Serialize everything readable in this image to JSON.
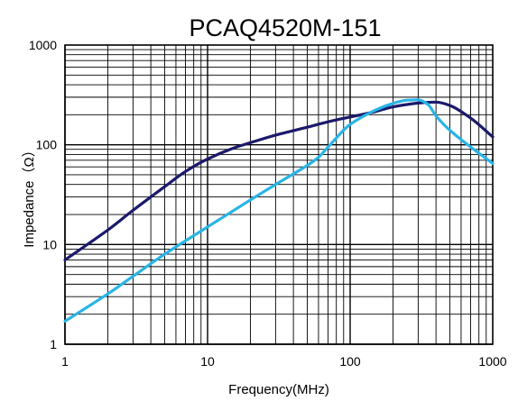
{
  "chart_data": {
    "type": "line",
    "title": "PCAQ4520M-151",
    "xlabel": "Frequency(MHz)",
    "ylabel": "Impedance（Ω）",
    "x_scale": "log",
    "y_scale": "log",
    "xlim": [
      1,
      1000
    ],
    "ylim": [
      1,
      1000
    ],
    "grid": true,
    "x_ticks": [
      {
        "value": 1,
        "label": "1"
      },
      {
        "value": 10,
        "label": "10"
      },
      {
        "value": 100,
        "label": "100"
      },
      {
        "value": 1000,
        "label": "1000"
      }
    ],
    "y_ticks": [
      {
        "value": 1,
        "label": "1"
      },
      {
        "value": 10,
        "label": "10"
      },
      {
        "value": 100,
        "label": "100"
      },
      {
        "value": 1000,
        "label": "1000"
      }
    ],
    "series": [
      {
        "color": "#1b1a6b",
        "points": [
          [
            1,
            7
          ],
          [
            2,
            14
          ],
          [
            3,
            22
          ],
          [
            5,
            38
          ],
          [
            7,
            54
          ],
          [
            10,
            72
          ],
          [
            15,
            92
          ],
          [
            20,
            105
          ],
          [
            30,
            125
          ],
          [
            50,
            150
          ],
          [
            70,
            170
          ],
          [
            100,
            190
          ],
          [
            150,
            215
          ],
          [
            200,
            240
          ],
          [
            300,
            262
          ],
          [
            400,
            268
          ],
          [
            500,
            248
          ],
          [
            700,
            185
          ],
          [
            1000,
            120
          ]
        ]
      },
      {
        "color": "#29b4e6",
        "points": [
          [
            1,
            1.7
          ],
          [
            2,
            3.2
          ],
          [
            3,
            4.8
          ],
          [
            5,
            8
          ],
          [
            10,
            15
          ],
          [
            20,
            28
          ],
          [
            30,
            40
          ],
          [
            50,
            62
          ],
          [
            60,
            75
          ],
          [
            70,
            95
          ],
          [
            100,
            160
          ],
          [
            150,
            222
          ],
          [
            200,
            260
          ],
          [
            250,
            280
          ],
          [
            300,
            282
          ],
          [
            350,
            255
          ],
          [
            400,
            195
          ],
          [
            500,
            140
          ],
          [
            700,
            95
          ],
          [
            1000,
            65
          ]
        ]
      }
    ]
  }
}
